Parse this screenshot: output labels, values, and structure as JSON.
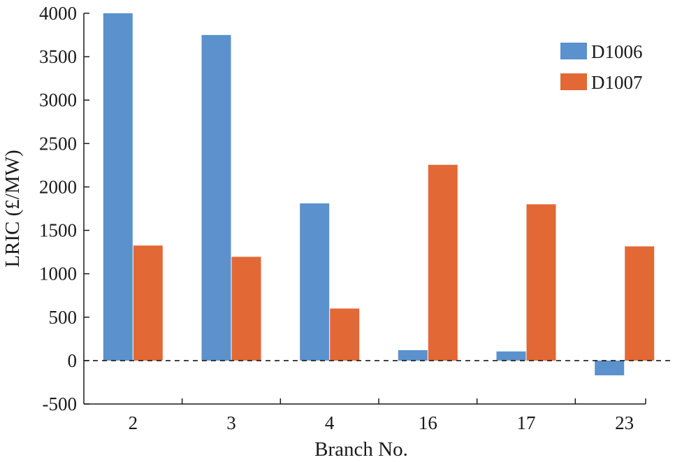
{
  "chart_data": {
    "type": "bar",
    "categories": [
      "2",
      "3",
      "4",
      "16",
      "17",
      "23"
    ],
    "series": [
      {
        "name": "D1006",
        "color": "#5b91cc",
        "values": [
          4000,
          3750,
          1810,
          120,
          105,
          -170
        ]
      },
      {
        "name": "D1007",
        "color": "#e26835",
        "values": [
          1325,
          1195,
          600,
          2255,
          1800,
          1315
        ]
      }
    ],
    "title": "",
    "xlabel": "Branch No.",
    "ylabel": "LRIC (£/MW)",
    "ylim": [
      -500,
      4000
    ],
    "yticks": [
      -500,
      0,
      500,
      1000,
      1500,
      2000,
      2500,
      3000,
      3500,
      4000
    ],
    "grid": false,
    "zero_line": "dashed",
    "legend": "top-right"
  }
}
